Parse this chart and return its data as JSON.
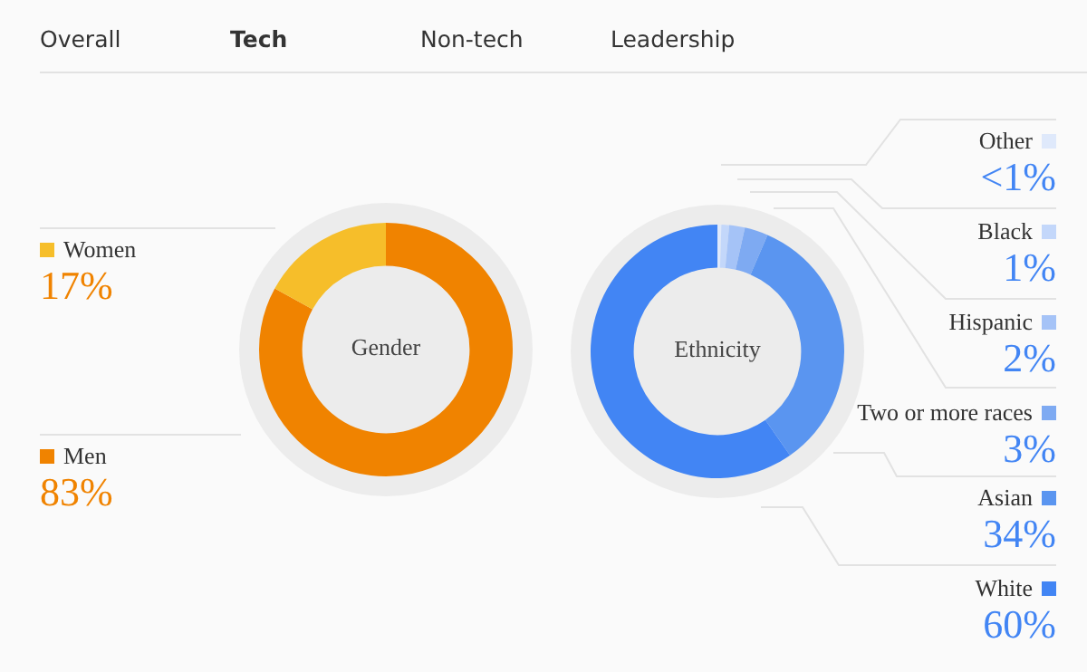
{
  "chart_data": [
    {
      "type": "donut",
      "title": "Gender",
      "categories": [
        "Men",
        "Women"
      ],
      "values": [
        83,
        17
      ],
      "colors": [
        "#f08300",
        "#f6be2a"
      ],
      "value_labels": [
        "83%",
        "17%"
      ],
      "legend": "left",
      "annotations": [
        "Overall",
        "Tech",
        "Non-tech",
        "Leadership"
      ]
    },
    {
      "type": "donut",
      "title": "Ethnicity",
      "categories": [
        "Other",
        "Black",
        "Hispanic",
        "Two or more races",
        "Asian",
        "White"
      ],
      "values": [
        0.5,
        1,
        2,
        3,
        34,
        60
      ],
      "colors": [
        "#dfe9fb",
        "#c3d7fa",
        "#a5c3f7",
        "#7eaaf2",
        "#5a95f0",
        "#4285f4"
      ],
      "value_labels": [
        "<1%",
        "1%",
        "2%",
        "3%",
        "34%",
        "60%"
      ],
      "legend": "right"
    }
  ]
}
